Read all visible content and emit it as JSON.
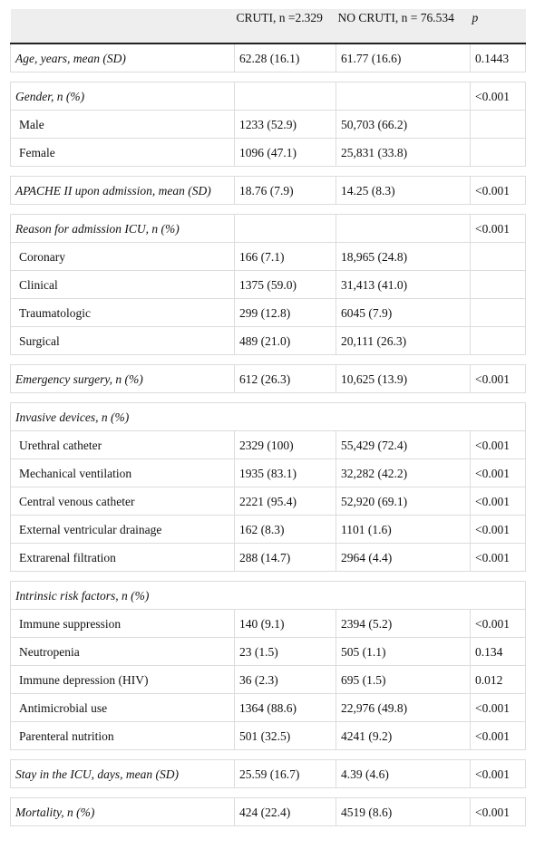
{
  "table": {
    "header": [
      "CRUTI, n =2.329",
      "NO CRUTI, n = 76.534",
      "p"
    ],
    "groups": [
      [
        {
          "label": "Age, years, mean (SD)",
          "italic": true,
          "cruti": "62.28 (16.1)",
          "no_cruti": "61.77 (16.6)",
          "p": "0.1443"
        }
      ],
      [
        {
          "label": "Gender, n (%)",
          "italic": true,
          "p": "<0.001"
        },
        {
          "label": "Male",
          "cruti": "1233 (52.9)",
          "no_cruti": "50,703 (66.2)"
        },
        {
          "label": "Female",
          "cruti": "1096 (47.1)",
          "no_cruti": "25,831 (33.8)"
        }
      ],
      [
        {
          "label": "APACHE II upon admission, mean (SD)",
          "italic": true,
          "cruti": "18.76 (7.9)",
          "no_cruti": "14.25 (8.3)",
          "p": "<0.001"
        }
      ],
      [
        {
          "label": "Reason for admission ICU, n (%)",
          "italic": true,
          "p": "<0.001"
        },
        {
          "label": "Coronary",
          "cruti": "166 (7.1)",
          "no_cruti": "18,965 (24.8)"
        },
        {
          "label": "Clinical",
          "cruti": "1375 (59.0)",
          "no_cruti": "31,413 (41.0)"
        },
        {
          "label": "Traumatologic",
          "cruti": "299 (12.8)",
          "no_cruti": "6045 (7.9)"
        },
        {
          "label": "Surgical",
          "cruti": "489 (21.0)",
          "no_cruti": "20,111 (26.3)"
        }
      ],
      [
        {
          "label": "Emergency surgery, n (%)",
          "italic": true,
          "cruti": "612 (26.3)",
          "no_cruti": "10,625 (13.9)",
          "p": "<0.001"
        }
      ],
      [
        {
          "label": "Invasive devices, n (%)",
          "italic": true,
          "span": true
        },
        {
          "label": "Urethral catheter",
          "cruti": "2329 (100)",
          "no_cruti": "55,429 (72.4)",
          "p": "<0.001"
        },
        {
          "label": "Mechanical ventilation",
          "cruti": "1935 (83.1)",
          "no_cruti": "32,282 (42.2)",
          "p": "<0.001"
        },
        {
          "label": "Central venous catheter",
          "cruti": "2221 (95.4)",
          "no_cruti": "52,920 (69.1)",
          "p": "<0.001"
        },
        {
          "label": "External ventricular drainage",
          "cruti": "162 (8.3)",
          "no_cruti": "1101 (1.6)",
          "p": "<0.001"
        },
        {
          "label": "Extrarenal filtration",
          "cruti": "288 (14.7)",
          "no_cruti": "2964 (4.4)",
          "p": "<0.001"
        }
      ],
      [
        {
          "label": "Intrinsic risk factors, n (%)",
          "italic": true,
          "span": true
        },
        {
          "label": "Immune suppression",
          "cruti": "140 (9.1)",
          "no_cruti": "2394 (5.2)",
          "p": "<0.001"
        },
        {
          "label": "Neutropenia",
          "cruti": "23 (1.5)",
          "no_cruti": "505 (1.1)",
          "p": "0.134"
        },
        {
          "label": "Immune depression (HIV)",
          "cruti": "36 (2.3)",
          "no_cruti": "695 (1.5)",
          "p": "0.012"
        },
        {
          "label": "Antimicrobial use",
          "cruti": "1364 (88.6)",
          "no_cruti": "22,976 (49.8)",
          "p": "<0.001"
        },
        {
          "label": "Parenteral nutrition",
          "cruti": "501 (32.5)",
          "no_cruti": "4241 (9.2)",
          "p": "<0.001"
        }
      ],
      [
        {
          "label": "Stay in the ICU, days, mean (SD)",
          "italic": true,
          "cruti": "25.59 (16.7)",
          "no_cruti": "4.39 (4.6)",
          "p": "<0.001"
        }
      ],
      [
        {
          "label": "Mortality, n (%)",
          "italic": true,
          "cruti": "424 (22.4)",
          "no_cruti": "4519 (8.6)",
          "p": "<0.001"
        }
      ]
    ]
  }
}
